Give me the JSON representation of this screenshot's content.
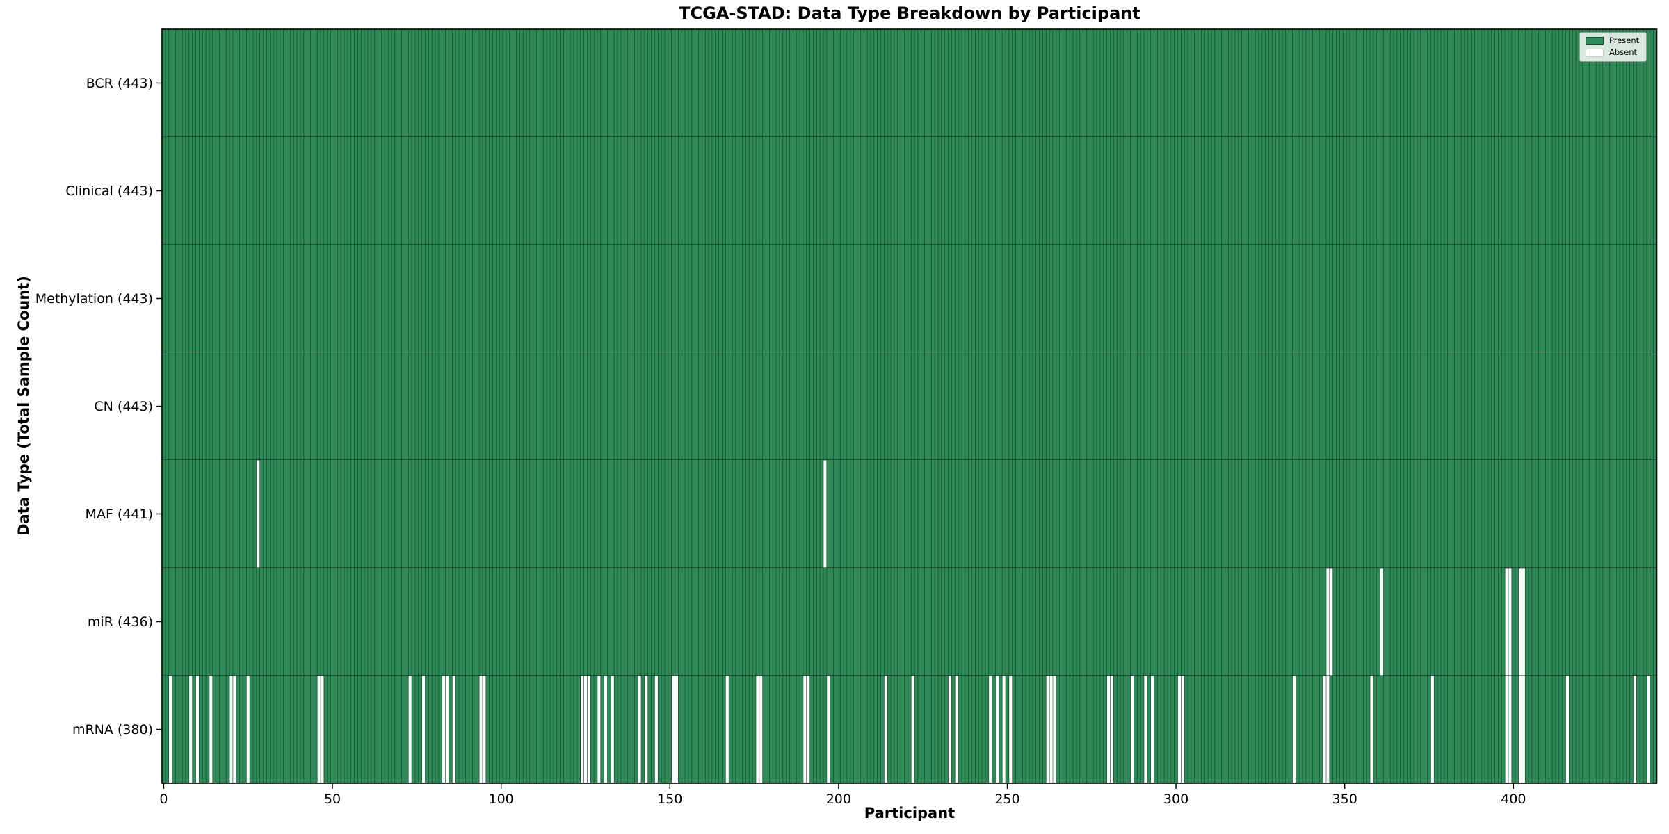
{
  "chart_data": {
    "type": "heatmap",
    "title": "TCGA-STAD: Data Type Breakdown by Participant",
    "xlabel": "Participant",
    "ylabel": "Data Type (Total Sample Count)",
    "n_participants": 443,
    "x_ticks": [
      0,
      50,
      100,
      150,
      200,
      250,
      300,
      350,
      400
    ],
    "cell_values": {
      "present": 1,
      "absent": 0
    },
    "grid": false,
    "rows": [
      {
        "label": "BCR (443)",
        "data_type": "BCR",
        "present_count": 443,
        "absent_participants": []
      },
      {
        "label": "Clinical (443)",
        "data_type": "Clinical",
        "present_count": 443,
        "absent_participants": []
      },
      {
        "label": "Methylation (443)",
        "data_type": "Methylation",
        "present_count": 443,
        "absent_participants": []
      },
      {
        "label": "CN (443)",
        "data_type": "CN",
        "present_count": 443,
        "absent_participants": []
      },
      {
        "label": "MAF (441)",
        "data_type": "MAF",
        "present_count": 441,
        "absent_participants": [
          28,
          196
        ]
      },
      {
        "label": "miR (436)",
        "data_type": "miR",
        "present_count": 436,
        "absent_participants": [
          345,
          346,
          361,
          398,
          399,
          402,
          403
        ]
      },
      {
        "label": "mRNA (380)",
        "data_type": "mRNA",
        "present_count": 380,
        "absent_participants": [
          2,
          8,
          10,
          14,
          20,
          21,
          25,
          46,
          47,
          73,
          77,
          83,
          84,
          86,
          94,
          95,
          124,
          125,
          126,
          129,
          131,
          133,
          141,
          143,
          146,
          151,
          152,
          167,
          176,
          177,
          190,
          191,
          197,
          214,
          222,
          233,
          235,
          245,
          247,
          249,
          251,
          262,
          263,
          264,
          280,
          281,
          287,
          291,
          293,
          301,
          302,
          335,
          344,
          345,
          358,
          376,
          398,
          399,
          402,
          403,
          416,
          436,
          440
        ]
      }
    ],
    "legend": {
      "position": "upper right",
      "present_label": "Present",
      "absent_label": "Absent"
    }
  },
  "colors": {
    "present": "#2e8b57",
    "absent": "#ffffff",
    "bar_edge": "rgba(0,0,0,0.5)",
    "row_separator": "#1a1a1a",
    "frame": "#000000",
    "legend_border": "#9a9a9a"
  }
}
